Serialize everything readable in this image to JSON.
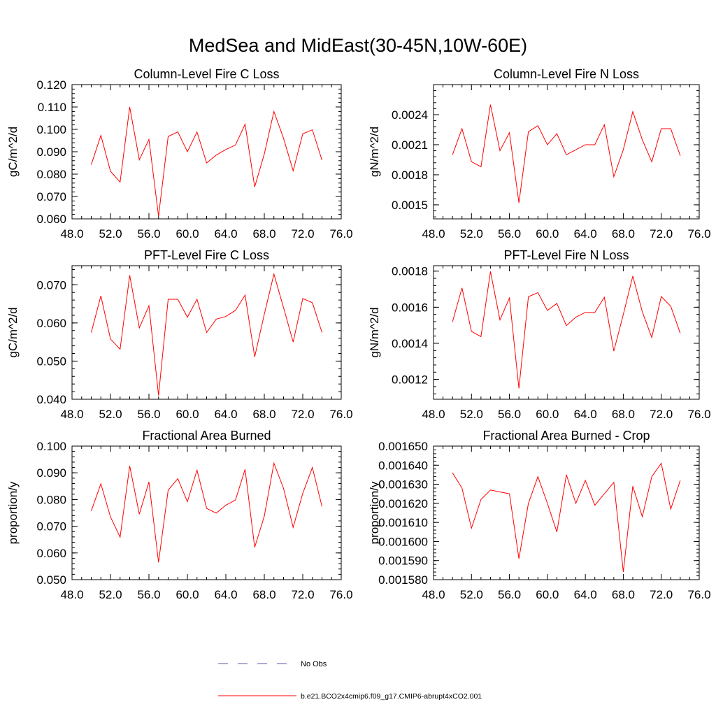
{
  "figure": {
    "title": "MedSea and MidEast(30-45N,10W-60E)",
    "line_color": "#ff0000",
    "obs_color": "#5a5aa8",
    "legend": [
      {
        "label": "No Obs",
        "style": "dashed",
        "color": "#5a5aa8"
      },
      {
        "label": "b.e21.BCO2x4cmip6.f09_g17.CMIP6-abrupt4xCO2.001",
        "style": "solid",
        "color": "#ff0000"
      }
    ]
  },
  "chart_data": [
    {
      "type": "line",
      "title": "Column-Level Fire C Loss",
      "xlabel": "",
      "ylabel": "gC/m^2/d",
      "xlim": [
        48,
        76
      ],
      "ylim": [
        0.06,
        0.12
      ],
      "xticks": [
        "48.0",
        "52.0",
        "56.0",
        "60.0",
        "64.0",
        "68.0",
        "72.0",
        "76.0"
      ],
      "yticks": [
        {
          "v": 0.06,
          "label": "0.060"
        },
        {
          "v": 0.07,
          "label": "0.070"
        },
        {
          "v": 0.08,
          "label": "0.080"
        },
        {
          "v": 0.09,
          "label": "0.090"
        },
        {
          "v": 0.1,
          "label": "0.100"
        },
        {
          "v": 0.11,
          "label": "0.110"
        },
        {
          "v": 0.12,
          "label": "0.120"
        }
      ],
      "x": [
        50,
        51,
        52,
        53,
        54,
        55,
        56,
        57,
        58,
        59,
        60,
        61,
        62,
        63,
        64,
        65,
        66,
        67,
        68,
        69,
        70,
        71,
        72,
        73,
        74
      ],
      "series": [
        {
          "name": "b.e21.BCO2x4cmip6.f09_g17.CMIP6-abrupt4xCO2.001",
          "values": [
            0.0842,
            0.0973,
            0.0813,
            0.0764,
            0.11,
            0.0864,
            0.0955,
            0.0612,
            0.0968,
            0.0989,
            0.09,
            0.0988,
            0.085,
            0.0885,
            0.091,
            0.093,
            0.1023,
            0.0743,
            0.089,
            0.108,
            0.096,
            0.0815,
            0.098,
            0.0998,
            0.0862
          ]
        }
      ]
    },
    {
      "type": "line",
      "title": "Column-Level Fire N Loss",
      "xlabel": "",
      "ylabel": "gN/m^2/d",
      "xlim": [
        48,
        76
      ],
      "ylim": [
        0.00136,
        0.0027
      ],
      "xticks": [
        "48.0",
        "52.0",
        "56.0",
        "60.0",
        "64.0",
        "68.0",
        "72.0",
        "76.0"
      ],
      "yticks": [
        {
          "v": 0.0015,
          "label": "0.0015"
        },
        {
          "v": 0.0018,
          "label": "0.0018"
        },
        {
          "v": 0.0021,
          "label": "0.0021"
        },
        {
          "v": 0.0024,
          "label": "0.0024"
        }
      ],
      "x": [
        50,
        51,
        52,
        53,
        54,
        55,
        56,
        57,
        58,
        59,
        60,
        61,
        62,
        63,
        64,
        65,
        66,
        67,
        68,
        69,
        70,
        71,
        72,
        73,
        74
      ],
      "series": [
        {
          "name": "b.e21.BCO2x4cmip6.f09_g17.CMIP6-abrupt4xCO2.001",
          "values": [
            0.002,
            0.00226,
            0.00193,
            0.00188,
            0.0025,
            0.00204,
            0.00222,
            0.00152,
            0.00223,
            0.00229,
            0.0021,
            0.00221,
            0.002,
            0.00205,
            0.0021,
            0.0021,
            0.0023,
            0.00178,
            0.00205,
            0.00243,
            0.00215,
            0.00193,
            0.00226,
            0.00226,
            0.00199
          ]
        }
      ]
    },
    {
      "type": "line",
      "title": "PFT-Level Fire C Loss",
      "xlabel": "",
      "ylabel": "gC/m^2/d",
      "xlim": [
        48,
        76
      ],
      "ylim": [
        0.04,
        0.075
      ],
      "xticks": [
        "48.0",
        "52.0",
        "56.0",
        "60.0",
        "64.0",
        "68.0",
        "72.0",
        "76.0"
      ],
      "yticks": [
        {
          "v": 0.04,
          "label": "0.040"
        },
        {
          "v": 0.05,
          "label": "0.050"
        },
        {
          "v": 0.06,
          "label": "0.060"
        },
        {
          "v": 0.07,
          "label": "0.070"
        }
      ],
      "x": [
        50,
        51,
        52,
        53,
        54,
        55,
        56,
        57,
        58,
        59,
        60,
        61,
        62,
        63,
        64,
        65,
        66,
        67,
        68,
        69,
        70,
        71,
        72,
        73,
        74
      ],
      "series": [
        {
          "name": "b.e21.BCO2x4cmip6.f09_g17.CMIP6-abrupt4xCO2.001",
          "values": [
            0.0575,
            0.0671,
            0.0558,
            0.0531,
            0.0725,
            0.0587,
            0.0645,
            0.041,
            0.0662,
            0.0662,
            0.0615,
            0.0662,
            0.0575,
            0.061,
            0.0617,
            0.0633,
            0.0673,
            0.0511,
            0.0623,
            0.0728,
            0.064,
            0.055,
            0.0664,
            0.0653,
            0.0575
          ]
        }
      ]
    },
    {
      "type": "line",
      "title": "PFT-Level Fire N Loss",
      "xlabel": "",
      "ylabel": "gN/m^2/d",
      "xlim": [
        48,
        76
      ],
      "ylim": [
        0.00109,
        0.00183
      ],
      "xticks": [
        "48.0",
        "52.0",
        "56.0",
        "60.0",
        "64.0",
        "68.0",
        "72.0",
        "76.0"
      ],
      "yticks": [
        {
          "v": 0.0012,
          "label": "0.0012"
        },
        {
          "v": 0.0014,
          "label": "0.0014"
        },
        {
          "v": 0.0016,
          "label": "0.0016"
        },
        {
          "v": 0.0018,
          "label": "0.0018"
        }
      ],
      "x": [
        50,
        51,
        52,
        53,
        54,
        55,
        56,
        57,
        58,
        59,
        60,
        61,
        62,
        63,
        64,
        65,
        66,
        67,
        68,
        69,
        70,
        71,
        72,
        73,
        74
      ],
      "series": [
        {
          "name": "b.e21.BCO2x4cmip6.f09_g17.CMIP6-abrupt4xCO2.001",
          "values": [
            0.001519,
            0.001707,
            0.001466,
            0.001437,
            0.001798,
            0.00153,
            0.001651,
            0.00115,
            0.001658,
            0.001681,
            0.001582,
            0.001621,
            0.001498,
            0.001545,
            0.001571,
            0.001571,
            0.001655,
            0.001357,
            0.00156,
            0.001773,
            0.001575,
            0.001432,
            0.001659,
            0.001605,
            0.001456
          ]
        }
      ]
    },
    {
      "type": "line",
      "title": "Fractional Area Burned",
      "xlabel": "",
      "ylabel": "proportion/y",
      "xlim": [
        48,
        76
      ],
      "ylim": [
        0.05,
        0.1
      ],
      "xticks": [
        "48.0",
        "52.0",
        "56.0",
        "60.0",
        "64.0",
        "68.0",
        "72.0",
        "76.0"
      ],
      "yticks": [
        {
          "v": 0.05,
          "label": "0.050"
        },
        {
          "v": 0.06,
          "label": "0.060"
        },
        {
          "v": 0.07,
          "label": "0.070"
        },
        {
          "v": 0.08,
          "label": "0.080"
        },
        {
          "v": 0.09,
          "label": "0.090"
        },
        {
          "v": 0.1,
          "label": "0.100"
        }
      ],
      "x": [
        50,
        51,
        52,
        53,
        54,
        55,
        56,
        57,
        58,
        59,
        60,
        61,
        62,
        63,
        64,
        65,
        66,
        67,
        68,
        69,
        70,
        71,
        72,
        73,
        74
      ],
      "series": [
        {
          "name": "b.e21.BCO2x4cmip6.f09_g17.CMIP6-abrupt4xCO2.001",
          "values": [
            0.0757,
            0.0859,
            0.0735,
            0.0659,
            0.0926,
            0.0745,
            0.0866,
            0.0565,
            0.0835,
            0.0878,
            0.0792,
            0.091,
            0.0767,
            0.0749,
            0.0779,
            0.0798,
            0.0913,
            0.0621,
            0.0738,
            0.0936,
            0.0842,
            0.0696,
            0.0823,
            0.092,
            0.0774
          ]
        }
      ]
    },
    {
      "type": "line",
      "title": "Fractional Area Burned - Crop",
      "xlabel": "",
      "ylabel": "proportion/y",
      "xlim": [
        48,
        76
      ],
      "ylim": [
        0.00158,
        0.00165
      ],
      "xticks": [
        "48.0",
        "52.0",
        "56.0",
        "60.0",
        "64.0",
        "68.0",
        "72.0",
        "76.0"
      ],
      "yticks": [
        {
          "v": 0.00158,
          "label": "0.001580"
        },
        {
          "v": 0.00159,
          "label": "0.001590"
        },
        {
          "v": 0.0016,
          "label": "0.001600"
        },
        {
          "v": 0.00161,
          "label": "0.001610"
        },
        {
          "v": 0.00162,
          "label": "0.001620"
        },
        {
          "v": 0.00163,
          "label": "0.001630"
        },
        {
          "v": 0.00164,
          "label": "0.001640"
        },
        {
          "v": 0.00165,
          "label": "0.001650"
        }
      ],
      "x": [
        50,
        51,
        52,
        53,
        54,
        55,
        56,
        57,
        58,
        59,
        60,
        61,
        62,
        63,
        64,
        65,
        66,
        67,
        68,
        69,
        70,
        71,
        72,
        73,
        74
      ],
      "series": [
        {
          "name": "b.e21.BCO2x4cmip6.f09_g17.CMIP6-abrupt4xCO2.001",
          "values": [
            0.001636,
            0.001628,
            0.001607,
            0.001622,
            0.001627,
            0.001626,
            0.001625,
            0.001591,
            0.00162,
            0.001634,
            0.00162,
            0.001605,
            0.001635,
            0.00162,
            0.001632,
            0.001619,
            0.001625,
            0.001631,
            0.001584,
            0.001629,
            0.001613,
            0.001634,
            0.001641,
            0.001617,
            0.001632
          ]
        }
      ]
    }
  ]
}
